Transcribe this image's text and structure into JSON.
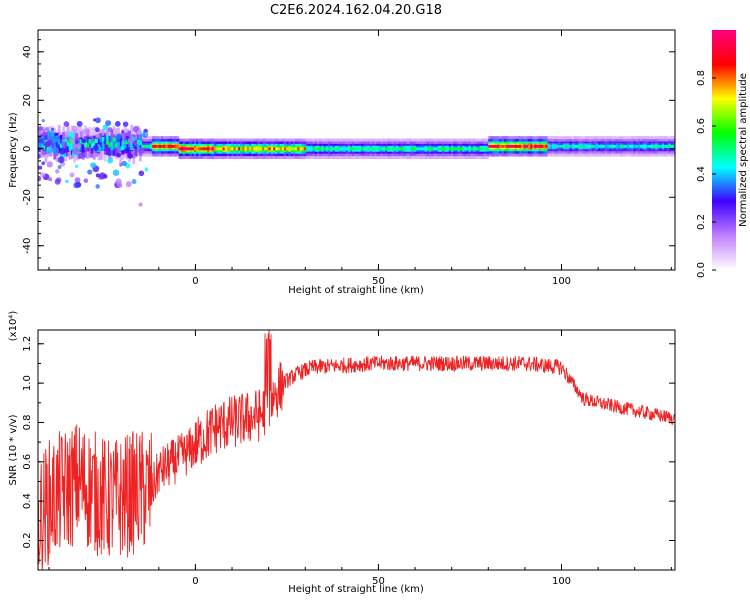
{
  "title": "C2E6.2024.162.04.20.G18",
  "chart_data": [
    {
      "type": "heatmap",
      "xlabel": "Height of straight line (km)",
      "ylabel": "Frequency (Hz)",
      "xlim": [
        -43,
        131
      ],
      "ylim": [
        -50,
        49
      ],
      "xticks": [
        0,
        50,
        100
      ],
      "yticks": [
        -40,
        -20,
        0,
        20,
        40
      ],
      "colorbar": {
        "label": "Normalized spectral amplitude",
        "range": [
          0,
          1
        ],
        "ticks": [
          "0.0",
          "0.2",
          "0.4",
          "0.6",
          "0.8"
        ],
        "colors": [
          "#ffffff",
          "#c080ff",
          "#4000ff",
          "#00ffff",
          "#00ff00",
          "#ffff00",
          "#ff0000",
          "#ff0080"
        ]
      },
      "ridge": {
        "description_segments": [
          {
            "x": [
              -43,
              -15
            ],
            "freq_center": 2,
            "amplitude": 0.45
          },
          {
            "x": [
              -12,
              -5
            ],
            "freq_center": 1,
            "amplitude": 0.85
          },
          {
            "x": [
              -5,
              5
            ],
            "freq_center": 0,
            "amplitude": 0.9
          },
          {
            "x": [
              5,
              30
            ],
            "freq_center": 0,
            "amplitude": 0.75
          },
          {
            "x": [
              30,
              80
            ],
            "freq_center": 0,
            "amplitude": 0.5
          },
          {
            "x": [
              80,
              96
            ],
            "freq_center": 1,
            "amplitude": 0.9
          },
          {
            "x": [
              96,
              131
            ],
            "freq_center": 1,
            "amplitude": 0.45
          }
        ]
      }
    },
    {
      "type": "line",
      "xlabel": "Height of straight line (km)",
      "ylabel": "SNR (10 * v/v)",
      "yscale_label": "(x10⁴)",
      "xlim": [
        -43,
        131
      ],
      "ylim": [
        0.05,
        1.27
      ],
      "xticks": [
        0,
        50,
        100
      ],
      "yticks": [
        0.2,
        0.4,
        0.6,
        0.8,
        1.0,
        1.2
      ],
      "color": "#ee2222",
      "series": [
        {
          "x": [
            -43,
            -40,
            -36,
            -32,
            -28,
            -24,
            -20,
            -16,
            -12,
            -10,
            -6,
            -2,
            2,
            6,
            10,
            14,
            18,
            20,
            22,
            24,
            28,
            32,
            40,
            50,
            60,
            70,
            80,
            90,
            100,
            103,
            106,
            110,
            120,
            131
          ],
          "values": [
            0.3,
            0.4,
            0.45,
            0.5,
            0.45,
            0.4,
            0.42,
            0.45,
            0.45,
            0.55,
            0.6,
            0.65,
            0.72,
            0.78,
            0.8,
            0.82,
            0.84,
            0.9,
            0.95,
            1.0,
            1.05,
            1.08,
            1.09,
            1.1,
            1.1,
            1.1,
            1.1,
            1.1,
            1.08,
            1.0,
            0.92,
            0.9,
            0.86,
            0.82
          ]
        }
      ]
    }
  ]
}
